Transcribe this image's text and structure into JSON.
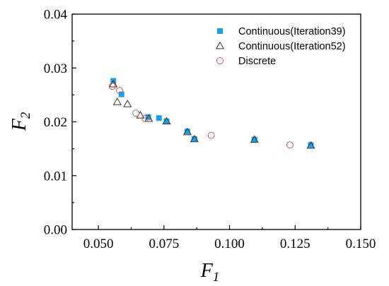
{
  "chart_data": {
    "type": "scatter",
    "xlabel": {
      "main": "F",
      "sub": "1"
    },
    "ylabel": {
      "main": "F",
      "sub": "2"
    },
    "xlim": [
      0.04,
      0.15
    ],
    "ylim": [
      0.0,
      0.04
    ],
    "xticks": [
      0.05,
      0.075,
      0.1,
      0.125,
      0.15
    ],
    "xtick_labels": [
      "0.050",
      "0.075",
      "0.100",
      "0.125",
      "0.150"
    ],
    "yticks": [
      0.0,
      0.01,
      0.02,
      0.03,
      0.04
    ],
    "ytick_labels": [
      "0.00",
      "0.01",
      "0.02",
      "0.03",
      "0.04"
    ],
    "grid": false,
    "legend_position": "top-right",
    "series": [
      {
        "name": "Continuous(Iteration39)",
        "marker": "filled-square",
        "color": "#1ba1e2",
        "x": [
          0.0557,
          0.0588,
          0.069,
          0.0731,
          0.076,
          0.0839,
          0.0866,
          0.1095,
          0.131
        ],
        "y": [
          0.0276,
          0.0251,
          0.0209,
          0.0207,
          0.0201,
          0.0182,
          0.0168,
          0.0167,
          0.0157
        ]
      },
      {
        "name": "Continuous(Iteration52)",
        "marker": "open-triangle",
        "color": "#333333",
        "x": [
          0.0557,
          0.0572,
          0.0611,
          0.066,
          0.0692,
          0.076,
          0.0839,
          0.0866,
          0.1095,
          0.131
        ],
        "y": [
          0.027,
          0.0237,
          0.0233,
          0.0212,
          0.0206,
          0.0201,
          0.0181,
          0.0168,
          0.0167,
          0.0156
        ]
      },
      {
        "name": "Discrete",
        "marker": "open-circle",
        "color": "#d9534f",
        "x": [
          0.0553,
          0.0581,
          0.0643,
          0.0678,
          0.093,
          0.123
        ],
        "y": [
          0.0266,
          0.0258,
          0.0216,
          0.0206,
          0.0175,
          0.0157
        ]
      }
    ]
  }
}
